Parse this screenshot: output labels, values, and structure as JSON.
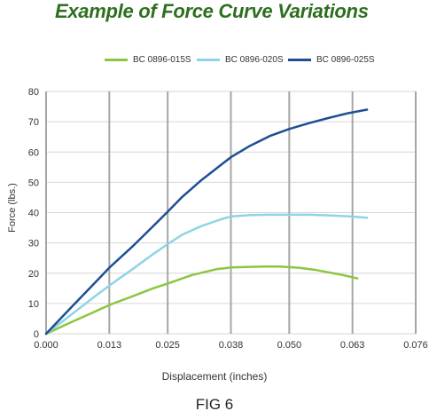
{
  "title": "Example of Force Curve Variations",
  "caption": "FIG 6",
  "chart_data": {
    "type": "line",
    "xlabel": "Displacement (inches)",
    "ylabel": "Force (lbs.)",
    "xlim": [
      0,
      0.076
    ],
    "ylim": [
      0,
      80
    ],
    "xticks": [
      0,
      0.013,
      0.025,
      0.038,
      0.05,
      0.063,
      0.076
    ],
    "xtick_labels": [
      "0.000",
      "0.013",
      "0.025",
      "0.038",
      "0.050",
      "0.063",
      "0.076"
    ],
    "yticks": [
      0,
      10,
      20,
      30,
      40,
      50,
      60,
      70,
      80
    ],
    "yticks_labels": [
      "0",
      "10",
      "20",
      "30",
      "40",
      "50",
      "60",
      "70",
      "80"
    ],
    "grid": "vertical and horizontal",
    "legend_position": "top",
    "series": [
      {
        "name": "BC 0896-015S",
        "color": "#8cc63f",
        "x": [
          0,
          0.005,
          0.01,
          0.013,
          0.018,
          0.022,
          0.025,
          0.03,
          0.035,
          0.038,
          0.042,
          0.045,
          0.048,
          0.052,
          0.055,
          0.058,
          0.061,
          0.064
        ],
        "y": [
          0,
          3.7,
          7.3,
          9.5,
          12.5,
          15,
          16.6,
          19.4,
          21.3,
          21.9,
          22.1,
          22.2,
          22.2,
          21.8,
          21.2,
          20.3,
          19.4,
          18.3
        ]
      },
      {
        "name": "BC 0896-020S",
        "color": "#8fd3e6",
        "x": [
          0,
          0.005,
          0.01,
          0.013,
          0.018,
          0.022,
          0.025,
          0.028,
          0.032,
          0.036,
          0.038,
          0.042,
          0.046,
          0.05,
          0.054,
          0.058,
          0.062,
          0.066
        ],
        "y": [
          0,
          6.1,
          12.3,
          15.9,
          21.6,
          26.3,
          29.6,
          32.7,
          35.6,
          37.8,
          38.7,
          39.2,
          39.3,
          39.3,
          39.3,
          39.1,
          38.8,
          38.3
        ]
      },
      {
        "name": "BC 0896-025S",
        "color": "#1f4e96",
        "x": [
          0,
          0.005,
          0.01,
          0.013,
          0.018,
          0.022,
          0.025,
          0.028,
          0.032,
          0.036,
          0.038,
          0.042,
          0.046,
          0.05,
          0.054,
          0.058,
          0.062,
          0.066
        ],
        "y": [
          0,
          8.4,
          16.8,
          21.8,
          29.2,
          35.5,
          40.3,
          45.2,
          50.8,
          55.8,
          58.3,
          62.1,
          65.3,
          67.6,
          69.5,
          71.2,
          72.8,
          74.0
        ]
      }
    ]
  }
}
